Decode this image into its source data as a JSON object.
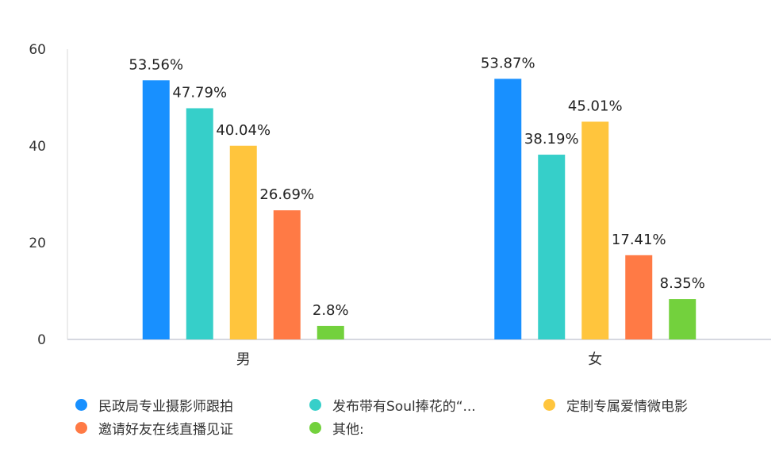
{
  "chart_data": {
    "type": "bar",
    "categories": [
      "男",
      "女"
    ],
    "series": [
      {
        "name": "民政局专业摄影师跟拍",
        "values": [
          53.56,
          53.87
        ],
        "labels": [
          "53.56%",
          "53.87%"
        ],
        "color": "#1890ff"
      },
      {
        "name": "发布带有Soul捧花的“...",
        "values": [
          47.79,
          38.19
        ],
        "labels": [
          "47.79%",
          "38.19%"
        ],
        "color": "#36cfc9"
      },
      {
        "name": "定制专属爱情微电影",
        "values": [
          40.04,
          45.01
        ],
        "labels": [
          "40.04%",
          "45.01%"
        ],
        "color": "#ffc53d"
      },
      {
        "name": "邀请好友在线直播见证",
        "values": [
          26.69,
          17.41
        ],
        "labels": [
          "26.69%",
          "17.41%"
        ],
        "color": "#ff7a45"
      },
      {
        "name": "其他:",
        "values": [
          2.8,
          8.35
        ],
        "labels": [
          "2.8%",
          "8.35%"
        ],
        "color": "#73d13d"
      }
    ],
    "ylim": [
      0,
      60
    ],
    "yticks": [
      "0",
      "20",
      "40",
      "60"
    ],
    "grid": false,
    "legend_position": "bottom-left",
    "title": "",
    "xlabel": "",
    "ylabel": ""
  }
}
